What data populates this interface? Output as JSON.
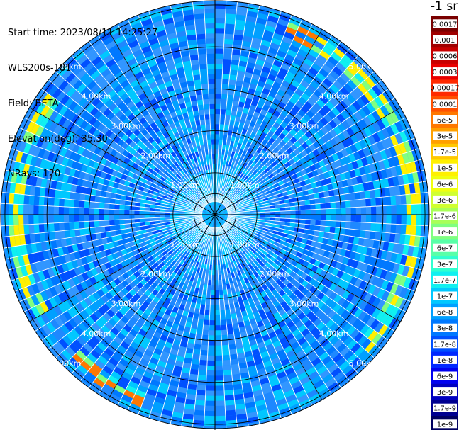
{
  "header": {
    "start_time": "Start time: 2023/08/11 14:25:27",
    "station": "WLS200s-181",
    "field": "Field: BETA",
    "elevation": "Elevation(deg): 35.30",
    "nrays": "NRays: 120"
  },
  "chart_data": {
    "type": "heatmap",
    "projection": "polar-ppi",
    "ray_count": 120,
    "range_rings": [
      "1.00km",
      "2.00km",
      "3.00km",
      "4.00km",
      "5.00km"
    ],
    "range_max_km": 5.1,
    "colorbar": {
      "unit": "-1 sr",
      "labels": [
        "0.0017",
        "0.001",
        "0.0006",
        "0.0003",
        "0.00017",
        "0.0001",
        "6e-5",
        "3e-5",
        "1.7e-5",
        "1e-5",
        "6e-6",
        "3e-6",
        "1.7e-6",
        "1e-6",
        "6e-7",
        "3e-7",
        "1.7e-7",
        "1e-7",
        "6e-8",
        "3e-8",
        "1.7e-8",
        "1e-8",
        "6e-9",
        "3e-9",
        "1.7e-9",
        "1e-9"
      ],
      "colors": [
        "#7a0000",
        "#a00000",
        "#c80000",
        "#e80000",
        "#ff2a00",
        "#ff5000",
        "#ff7800",
        "#ffa000",
        "#ffc800",
        "#fff000",
        "#f0ff10",
        "#d0ff30",
        "#a8ff58",
        "#80ff80",
        "#58ffa8",
        "#30ffd0",
        "#10f0f0",
        "#00c8ff",
        "#00a0ff",
        "#0078ff",
        "#0050ff",
        "#0028ff",
        "#0000f0",
        "#0000c0",
        "#000090",
        "#000060"
      ]
    }
  }
}
